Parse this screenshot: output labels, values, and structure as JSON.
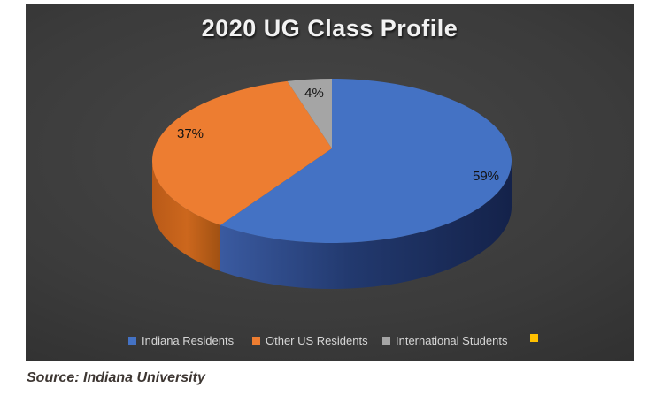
{
  "header": {
    "title": "2020 UG Class Profile"
  },
  "chart_data": {
    "type": "pie",
    "style": "3d-pie",
    "title": "2020 UG Class Profile",
    "labels": [
      "Indiana Residents",
      "Other US Residents",
      "International Students",
      ""
    ],
    "values": [
      59,
      37,
      4,
      0
    ],
    "data_labels": [
      "59%",
      "37%",
      "4%"
    ],
    "colors": [
      "#4472C4",
      "#ED7D31",
      "#A5A5A5",
      "#FFC000"
    ],
    "legend_position": "bottom",
    "start_angle_deg": 0,
    "clockwise": true,
    "background": {
      "panel_center": "#474747",
      "panel_edge": "#1d1d1d",
      "page": "#ffffff"
    },
    "wall_colors": {
      "blue_light": "#3a5aa0",
      "blue_dark": "#14224a",
      "orange_light": "#cc671d",
      "orange_dark": "#9e5012"
    }
  },
  "source_note": "Source: Indiana University"
}
